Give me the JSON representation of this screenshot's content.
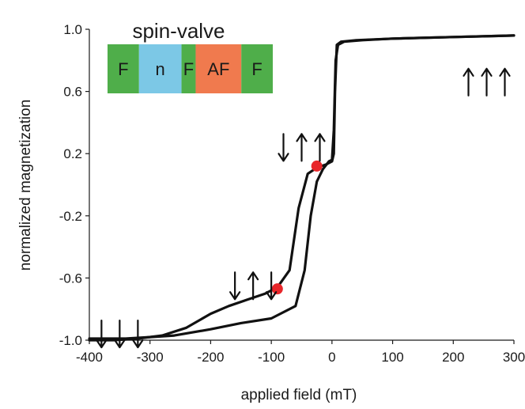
{
  "chart_data": {
    "type": "line",
    "title": "",
    "xlabel": "applied field (mT)",
    "ylabel": "normalized magnetization",
    "xlim": [
      -400,
      300
    ],
    "ylim": [
      -1.0,
      1.0
    ],
    "xticks": [
      -400,
      -300,
      -200,
      -100,
      0,
      100,
      200,
      300
    ],
    "yticks": [
      -1.0,
      -0.6,
      -0.2,
      0.2,
      0.6,
      1.0
    ],
    "xtick_labels": [
      "-400",
      "-300",
      "-200",
      "-100",
      "0",
      "100",
      "200",
      "300"
    ],
    "ytick_labels": [
      "-1.0",
      "-0.6",
      "-0.2",
      "0.2",
      "0.6",
      "1.0"
    ],
    "grid": false,
    "series": [
      {
        "branch": "descending",
        "color": "#111111",
        "x": [
          300,
          200,
          100,
          40,
          15,
          8,
          5,
          3,
          0,
          -10,
          -25,
          -40,
          -55,
          -70,
          -90,
          -110,
          -140,
          -170,
          -200,
          -240,
          -280,
          -320,
          -360,
          -400
        ],
        "y": [
          0.96,
          0.95,
          0.94,
          0.93,
          0.92,
          0.9,
          0.6,
          0.2,
          0.15,
          0.13,
          0.11,
          0.07,
          -0.15,
          -0.55,
          -0.66,
          -0.7,
          -0.74,
          -0.78,
          -0.83,
          -0.92,
          -0.97,
          -0.99,
          -1.0,
          -1.0
        ]
      },
      {
        "branch": "ascending",
        "color": "#111111",
        "x": [
          -400,
          -340,
          -300,
          -260,
          -200,
          -150,
          -100,
          -60,
          -45,
          -35,
          -25,
          -15,
          -5,
          0,
          3,
          6,
          10,
          20,
          50,
          100,
          200,
          300
        ],
        "y": [
          -0.99,
          -0.99,
          -0.98,
          -0.97,
          -0.93,
          -0.89,
          -0.86,
          -0.78,
          -0.55,
          -0.2,
          0.02,
          0.1,
          0.15,
          0.16,
          0.35,
          0.8,
          0.9,
          0.92,
          0.93,
          0.94,
          0.95,
          0.96
        ]
      }
    ],
    "markers": [
      {
        "x": -25,
        "y": 0.12,
        "color": "#e8262a"
      },
      {
        "x": -90,
        "y": -0.67,
        "color": "#e8262a"
      }
    ],
    "arrow_groups": [
      {
        "x": -50,
        "y": 0.24,
        "directions": [
          "down",
          "up",
          "up"
        ]
      },
      {
        "x": -130,
        "y": -0.65,
        "directions": [
          "down",
          "up",
          "down"
        ]
      },
      {
        "x": -350,
        "y": -0.96,
        "directions": [
          "down",
          "down",
          "down"
        ]
      },
      {
        "x": 255,
        "y": 0.66,
        "directions": [
          "up",
          "up",
          "up"
        ]
      }
    ],
    "inset": {
      "title": "spin-valve",
      "layers": [
        {
          "label": "F",
          "color": "#4fae4a",
          "weight": 1.0
        },
        {
          "label": "n",
          "color": "#7cc8e6",
          "weight": 1.35
        },
        {
          "label": "F",
          "color": "#4fae4a",
          "weight": 0.45
        },
        {
          "label": "AF",
          "color": "#f07a4e",
          "weight": 1.45
        },
        {
          "label": "F",
          "color": "#4fae4a",
          "weight": 1.0
        }
      ]
    }
  }
}
